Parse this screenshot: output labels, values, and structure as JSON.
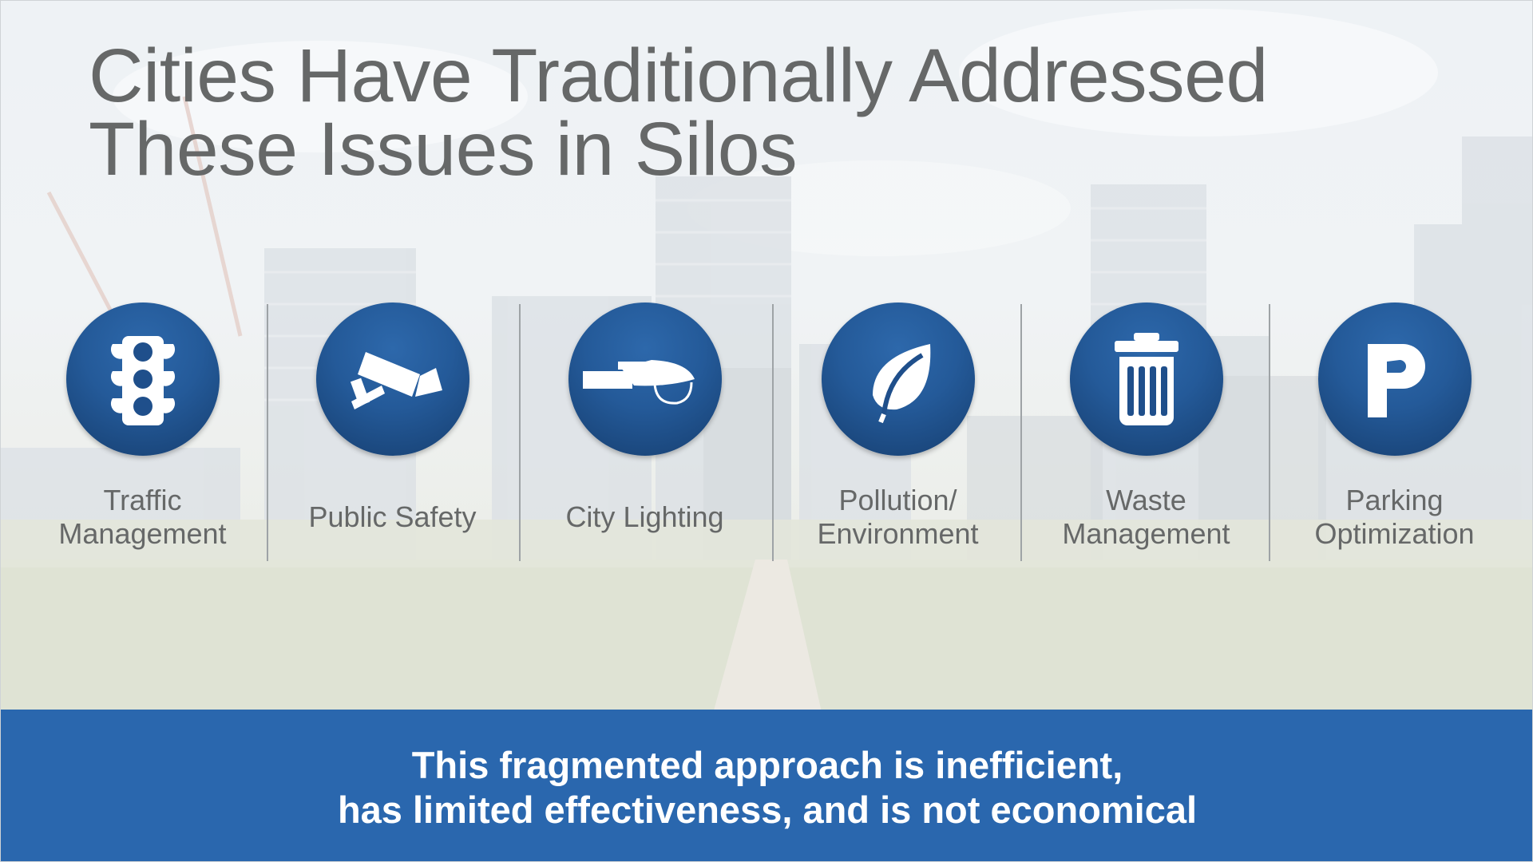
{
  "slide": {
    "title_line1": "Cities Have Traditionally Addressed",
    "title_line2": "These Issues in Silos",
    "silos": [
      {
        "label": "Traffic\nManagement",
        "icon": "traffic-light-icon"
      },
      {
        "label": "Public Safety",
        "icon": "security-camera-icon"
      },
      {
        "label": "City Lighting",
        "icon": "street-light-icon"
      },
      {
        "label": "Pollution/\nEnvironment",
        "icon": "leaf-icon"
      },
      {
        "label": "Waste\nManagement",
        "icon": "trash-can-icon"
      },
      {
        "label": "Parking\nOptimization",
        "icon": "parking-icon"
      }
    ],
    "banner_line1": "This fragmented approach is inefficient,",
    "banner_line2": "has limited effectiveness, and is not economical"
  },
  "colors": {
    "accent_blue": "#2a67ae",
    "icon_circle": "#245a99",
    "text_gray": "#666868",
    "banner_text": "#ffffff"
  }
}
